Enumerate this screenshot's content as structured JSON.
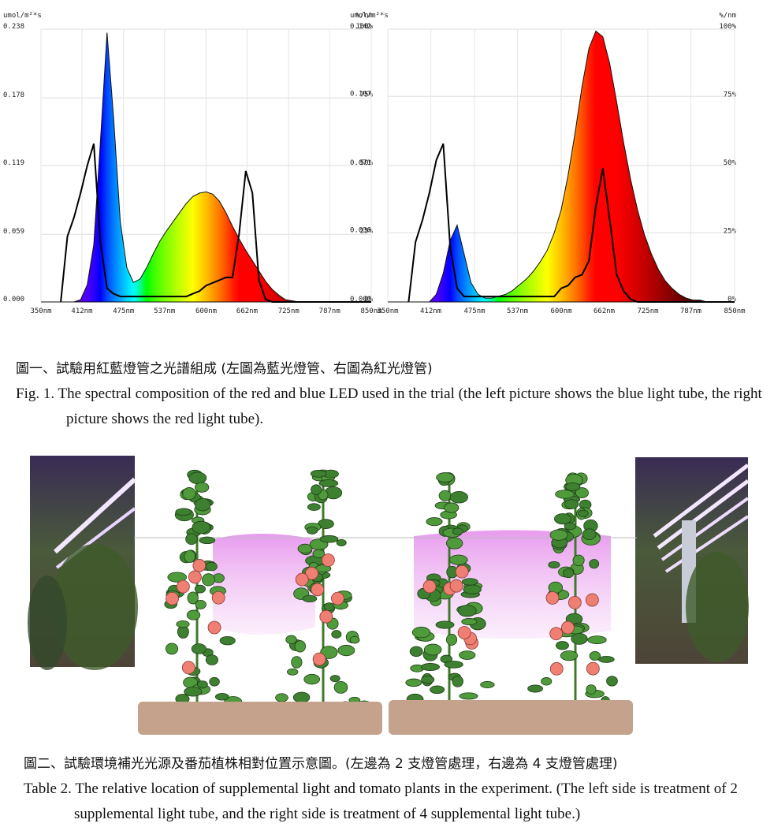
{
  "chart_data": [
    {
      "type": "area",
      "y_label": "umol/m²*s",
      "y2_label": "%/nm",
      "x": [
        350,
        360,
        370,
        380,
        390,
        400,
        410,
        420,
        430,
        440,
        450,
        460,
        470,
        480,
        490,
        500,
        510,
        520,
        530,
        540,
        550,
        560,
        570,
        580,
        590,
        600,
        610,
        620,
        630,
        640,
        650,
        660,
        670,
        680,
        690,
        700,
        710,
        720,
        730,
        740,
        750,
        760,
        770,
        780,
        790,
        800,
        810,
        820,
        830,
        840,
        850
      ],
      "xlim": [
        350,
        850
      ],
      "xticks": [
        {
          "value": 350,
          "label": "350nm"
        },
        {
          "value": 412,
          "label": "412nm"
        },
        {
          "value": 475,
          "label": "475nm"
        },
        {
          "value": 537,
          "label": "537nm"
        },
        {
          "value": 600,
          "label": "600nm"
        },
        {
          "value": 662,
          "label": "662nm"
        },
        {
          "value": 725,
          "label": "725nm"
        },
        {
          "value": 787,
          "label": "787nm"
        },
        {
          "value": 850,
          "label": "850nm"
        }
      ],
      "ylim": [
        0,
        0.238
      ],
      "yticks": [
        {
          "value": 0,
          "label": "0.000"
        },
        0.059,
        0.119,
        0.178,
        0.238
      ],
      "y2lim": [
        0,
        100
      ],
      "y2ticks": [
        {
          "value": 0,
          "label": "0%"
        },
        {
          "value": 25,
          "label": "25%"
        },
        {
          "value": 50,
          "label": "50%"
        },
        {
          "value": 75,
          "label": "75%"
        },
        {
          "value": 100,
          "label": "100%"
        }
      ],
      "grid": true,
      "series": [
        {
          "values": [
            0,
            0,
            0,
            0,
            0,
            0,
            0.002,
            0.015,
            0.05,
            0.14,
            0.235,
            0.16,
            0.07,
            0.03,
            0.017,
            0.02,
            0.03,
            0.042,
            0.053,
            0.062,
            0.07,
            0.078,
            0.086,
            0.092,
            0.095,
            0.096,
            0.094,
            0.088,
            0.078,
            0.066,
            0.055,
            0.045,
            0.036,
            0.027,
            0.018,
            0.011,
            0.006,
            0.002,
            0.001,
            0,
            0,
            0,
            0,
            0,
            0,
            0,
            0,
            0,
            0,
            0,
            0
          ]
        },
        {
          "axis": "y2",
          "color": "#000000",
          "values": [
            null,
            null,
            null,
            0,
            24,
            31,
            40,
            50,
            58,
            22,
            5,
            3,
            2,
            2,
            2,
            2,
            2,
            2,
            2,
            2,
            2,
            2,
            2,
            3,
            4,
            6,
            7,
            8,
            9,
            9,
            25,
            48,
            40,
            8,
            1,
            0,
            0,
            0,
            0,
            0,
            0,
            0,
            0,
            0,
            0,
            0,
            0,
            0,
            0,
            0,
            0
          ]
        }
      ]
    },
    {
      "type": "area",
      "y_label": "umol/m²*s",
      "y2_label": "%/nm",
      "x": [
        350,
        360,
        370,
        380,
        390,
        400,
        410,
        420,
        430,
        440,
        450,
        460,
        470,
        480,
        490,
        500,
        510,
        520,
        530,
        540,
        550,
        560,
        570,
        580,
        590,
        600,
        610,
        620,
        630,
        640,
        650,
        660,
        670,
        680,
        690,
        700,
        710,
        720,
        730,
        740,
        750,
        760,
        770,
        780,
        790,
        800,
        810,
        820,
        830,
        840,
        850
      ],
      "xlim": [
        350,
        850
      ],
      "xticks": [
        {
          "value": 350,
          "label": "350nm"
        },
        {
          "value": 412,
          "label": "412nm"
        },
        {
          "value": 475,
          "label": "475nm"
        },
        {
          "value": 537,
          "label": "537nm"
        },
        {
          "value": 600,
          "label": "600nm"
        },
        {
          "value": 662,
          "label": "662nm"
        },
        {
          "value": 725,
          "label": "725nm"
        },
        {
          "value": 787,
          "label": "787nm"
        },
        {
          "value": 850,
          "label": "850nm"
        }
      ],
      "ylim": [
        0,
        0.142
      ],
      "yticks": [
        {
          "value": 0,
          "label": "0.000"
        },
        0.036,
        0.071,
        0.107,
        0.142
      ],
      "y2lim": [
        0,
        100
      ],
      "y2ticks": [
        {
          "value": 0,
          "label": "0%"
        },
        {
          "value": 25,
          "label": "25%"
        },
        {
          "value": 50,
          "label": "50%"
        },
        {
          "value": 75,
          "label": "75%"
        },
        {
          "value": 100,
          "label": "100%"
        }
      ],
      "grid": true,
      "series": [
        {
          "values": [
            0,
            0,
            0,
            0,
            0,
            0,
            0,
            0.004,
            0.015,
            0.032,
            0.04,
            0.025,
            0.01,
            0.004,
            0.002,
            0.002,
            0.003,
            0.004,
            0.006,
            0.009,
            0.012,
            0.016,
            0.021,
            0.027,
            0.036,
            0.048,
            0.066,
            0.088,
            0.112,
            0.132,
            0.141,
            0.138,
            0.124,
            0.104,
            0.083,
            0.064,
            0.048,
            0.035,
            0.025,
            0.017,
            0.011,
            0.007,
            0.004,
            0.002,
            0.001,
            0.001,
            0,
            0,
            0,
            0,
            0
          ]
        },
        {
          "axis": "y2",
          "color": "#000000",
          "values": [
            null,
            null,
            null,
            0,
            22,
            30,
            40,
            52,
            58,
            20,
            5,
            2,
            2,
            2,
            2,
            2,
            2,
            2,
            2,
            2,
            2,
            2,
            2,
            2,
            2,
            5,
            6,
            9,
            10,
            15,
            35,
            49,
            30,
            10,
            4,
            1,
            0,
            0,
            0,
            0,
            0,
            0,
            0,
            0,
            0,
            0,
            0,
            0,
            0,
            0,
            0
          ]
        }
      ]
    }
  ],
  "figure1_caption": {
    "zh": "圖一、試驗用紅藍燈管之光譜組成 (左圖為藍光燈管、右圖為紅光燈管)",
    "en": "Fig. 1. The spectral composition of the red and blue LED used in the trial (the left picture shows the blue light tube, the right picture shows the red light tube)."
  },
  "figure2_caption": {
    "zh": "圖二、試驗環境補光光源及番茄植株相對位置示意圖。(左邊為 2 支燈管處理，右邊為 4 支燈管處理)",
    "en": "Table 2. The relative location of supplemental light and tomato plants in the experiment. (The left side is treatment of 2 supplemental light tube, and the right side is treatment of 4 supplemental light tube.)"
  }
}
